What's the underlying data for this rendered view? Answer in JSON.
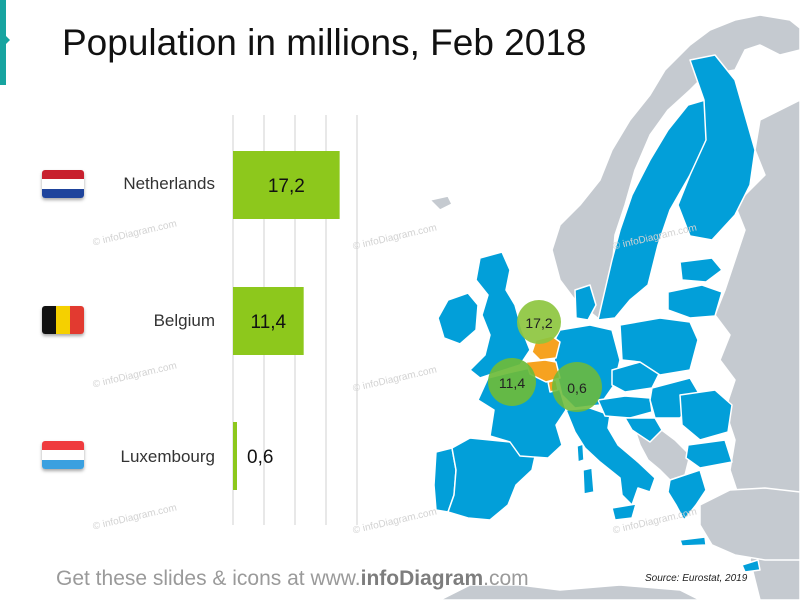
{
  "title": "Population in millions, Feb 2018",
  "chart_data": {
    "type": "bar",
    "orientation": "horizontal",
    "categories": [
      "Netherlands",
      "Belgium",
      "Luxembourg"
    ],
    "values": [
      17.2,
      11.4,
      0.6
    ],
    "value_labels": [
      "17,2",
      "11,4",
      "0,6"
    ],
    "xlim": [
      0,
      20
    ],
    "grid": true,
    "bar_color": "#8dc81c"
  },
  "map": {
    "bubbles": [
      {
        "country": "Netherlands",
        "label": "17,2"
      },
      {
        "country": "Belgium",
        "label": "11,4"
      },
      {
        "country": "Luxembourg",
        "label": "0,6"
      }
    ],
    "colors": {
      "eu": "#029fd9",
      "non_eu": "#c5cad0",
      "highlight": "#f6a220",
      "bubble": "#8dc63f"
    }
  },
  "flags": [
    {
      "country": "Netherlands",
      "colors": [
        "#c8202e",
        "#ffffff",
        "#1f449c"
      ]
    },
    {
      "country": "Belgium",
      "colors": [
        "#111111",
        "#f5d000",
        "#e23a30"
      ]
    },
    {
      "country": "Luxembourg",
      "colors": [
        "#ef3b3e",
        "#ffffff",
        "#3aa0e0"
      ]
    }
  ],
  "watermark": "© infoDiagram.com",
  "footer": {
    "prefix": "Get these slides & icons at www.",
    "brand": "infoDiagram",
    "suffix": ".com"
  },
  "source": "Source: Eurostat, 2019",
  "colors": {
    "accent": "#17a4a0",
    "title": "#111111",
    "footer": "#9a9a9a"
  }
}
